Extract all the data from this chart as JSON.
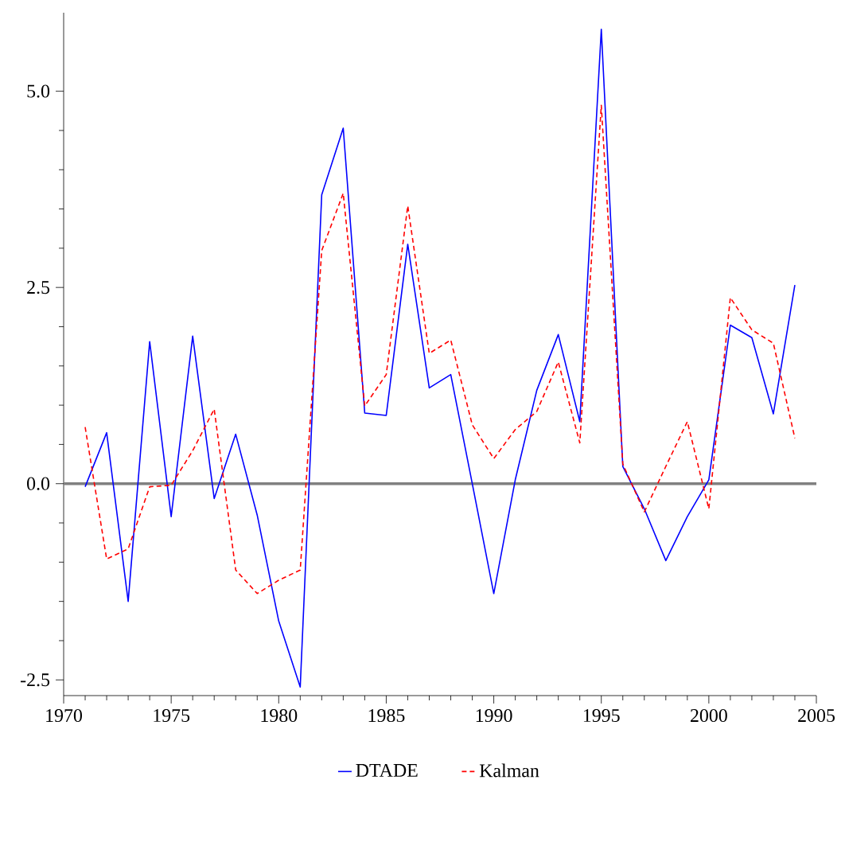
{
  "chart_data": {
    "type": "line",
    "x": [
      1971,
      1972,
      1973,
      1974,
      1975,
      1976,
      1977,
      1978,
      1979,
      1980,
      1981,
      1982,
      1983,
      1984,
      1985,
      1986,
      1987,
      1988,
      1989,
      1990,
      1991,
      1992,
      1993,
      1994,
      1995,
      1996,
      1997,
      1998,
      1999,
      2000,
      2001,
      2002,
      2003,
      2004
    ],
    "series": [
      {
        "name": "DTADE",
        "color": "#0000ff",
        "line_style": "solid",
        "values": [
          -0.04,
          0.65,
          -1.5,
          1.81,
          -0.42,
          1.88,
          -0.19,
          0.63,
          -0.4,
          -1.75,
          -2.59,
          3.68,
          4.53,
          0.9,
          0.87,
          3.05,
          1.22,
          1.39,
          0.0,
          -1.4,
          0.05,
          1.19,
          1.9,
          0.79,
          5.79,
          0.22,
          -0.32,
          -0.98,
          -0.42,
          0.05,
          2.02,
          1.86,
          0.89,
          2.53
        ]
      },
      {
        "name": "Kalman",
        "color": "#ff0000",
        "line_style": "dashed",
        "values": [
          0.72,
          -0.96,
          -0.83,
          -0.04,
          -0.02,
          0.42,
          0.95,
          -1.1,
          -1.4,
          -1.23,
          -1.1,
          2.97,
          3.7,
          0.99,
          1.39,
          3.54,
          1.66,
          1.83,
          0.75,
          0.32,
          0.69,
          0.92,
          1.55,
          0.52,
          4.82,
          0.25,
          -0.36,
          0.22,
          0.79,
          -0.32,
          2.37,
          1.96,
          1.79,
          0.58
        ]
      }
    ],
    "xlim": [
      1970,
      2005
    ],
    "ylim": [
      -2.7,
      6.0
    ],
    "xticks": [
      1970,
      1975,
      1980,
      1985,
      1990,
      1995,
      2000,
      2005
    ],
    "yticks": [
      {
        "value": -2.5,
        "label": "-2.5"
      },
      {
        "value": 0,
        "label": "0.0"
      },
      {
        "value": 2.5,
        "label": "2.5"
      },
      {
        "value": 5.0,
        "label": "5.0"
      }
    ],
    "ref_lines": [
      {
        "axis": "y",
        "value": 0,
        "color": "#808080"
      }
    ],
    "legend": "bottom",
    "grid": false,
    "marker": "none"
  }
}
